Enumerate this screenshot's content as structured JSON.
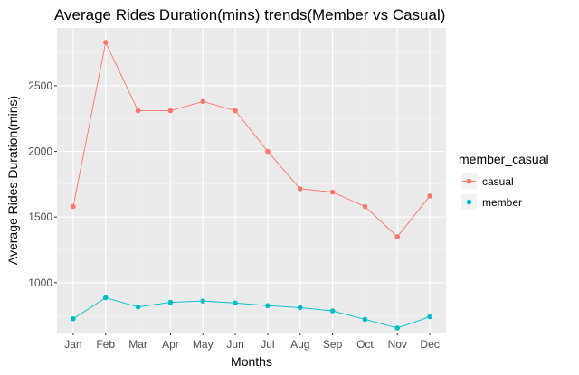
{
  "chart_data": {
    "type": "line",
    "title": "Average Rides Duration(mins) trends(Member vs Casual)",
    "xlabel": "Months",
    "ylabel": "Average Rides Duration(mins)",
    "categories": [
      "Jan",
      "Feb",
      "Mar",
      "Apr",
      "May",
      "Jun",
      "Jul",
      "Aug",
      "Sep",
      "Oct",
      "Nov",
      "Dec"
    ],
    "ylim": [
      620,
      2940
    ],
    "yticks": [
      1000,
      1500,
      2000,
      2500
    ],
    "grid": true,
    "legend": {
      "title": "member_casual",
      "position": "right"
    },
    "series": [
      {
        "name": "casual",
        "color": "#F8766D",
        "values": [
          1580,
          2830,
          2310,
          2310,
          2380,
          2310,
          2000,
          1715,
          1690,
          1580,
          1350,
          1660
        ]
      },
      {
        "name": "member",
        "color": "#00BFC4",
        "values": [
          725,
          885,
          815,
          850,
          860,
          845,
          825,
          810,
          785,
          720,
          655,
          740
        ]
      }
    ]
  }
}
